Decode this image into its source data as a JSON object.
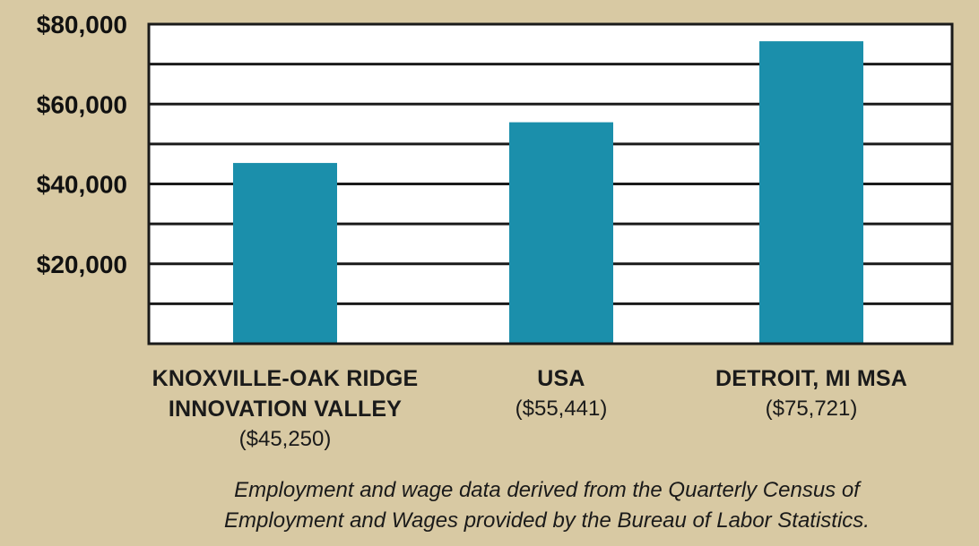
{
  "chart_data": {
    "type": "bar",
    "categories": [
      "KNOXVILLE-OAK RIDGE INNOVATION VALLEY",
      "USA",
      "DETROIT, MI MSA"
    ],
    "category_lines": [
      [
        "KNOXVILLE-OAK RIDGE",
        "INNOVATION VALLEY"
      ],
      [
        "USA"
      ],
      [
        "DETROIT, MI MSA"
      ]
    ],
    "value_labels": [
      "($45,250)",
      "($55,441)",
      "($75,721)"
    ],
    "values": [
      45250,
      55441,
      75721
    ],
    "ylim": [
      0,
      80000
    ],
    "yticks": [
      20000,
      40000,
      60000,
      80000
    ],
    "ytick_labels": [
      "$20,000",
      "$40,000",
      "$60,000",
      "$80,000"
    ],
    "gridlines": [
      10000,
      20000,
      30000,
      40000,
      50000,
      60000,
      70000,
      80000
    ],
    "grid": true,
    "bar_color": "#1b8fab",
    "plot_background": "#ffffff",
    "grid_color": "#1a1a1a"
  },
  "footnote": {
    "line1": "Employment and wage data derived from the Quarterly Census of",
    "line2": "Employment and Wages provided by the Bureau of Labor Statistics."
  }
}
